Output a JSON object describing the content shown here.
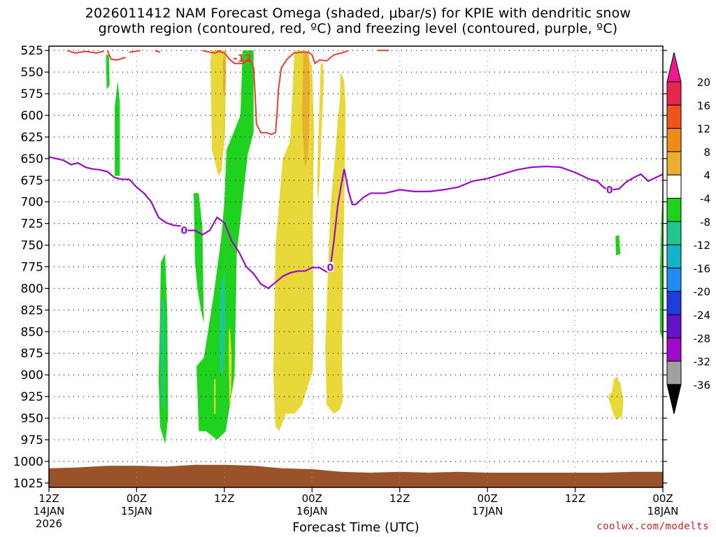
{
  "chart_data": {
    "type": "heatmap",
    "title_lines": [
      "2026011412 NAM Forecast Omega (shaded, μbar/s) for KPIE with dendritic snow",
      "growth region (contoured, red, ºC) and freezing level (contoured, purple, ºC)"
    ],
    "xlabel": "Forecast Time (UTC)",
    "credit": "coolwx.com/modelts",
    "x_range_hours": [
      0,
      84
    ],
    "x_ticks": [
      {
        "h": 0,
        "label": "12Z",
        "sub": "14JAN",
        "sub2": "2026"
      },
      {
        "h": 12,
        "label": "00Z",
        "sub": "15JAN",
        "sub2": ""
      },
      {
        "h": 24,
        "label": "12Z",
        "sub": "",
        "sub2": ""
      },
      {
        "h": 36,
        "label": "00Z",
        "sub": "16JAN",
        "sub2": ""
      },
      {
        "h": 48,
        "label": "12Z",
        "sub": "",
        "sub2": ""
      },
      {
        "h": 60,
        "label": "00Z",
        "sub": "17JAN",
        "sub2": ""
      },
      {
        "h": 72,
        "label": "12Z",
        "sub": "",
        "sub2": ""
      },
      {
        "h": 84,
        "label": "00Z",
        "sub": "18JAN",
        "sub2": ""
      }
    ],
    "y_ticks": [
      525,
      550,
      575,
      600,
      625,
      650,
      675,
      700,
      725,
      750,
      775,
      800,
      825,
      850,
      875,
      900,
      925,
      950,
      975,
      1000,
      1025
    ],
    "y_range_hpa": [
      520,
      1030
    ],
    "colorbar": {
      "labels": [
        "20",
        "16",
        "12",
        "8",
        "4",
        "-4",
        "-8",
        "-12",
        "-16",
        "-20",
        "-24",
        "-28",
        "-32",
        "-36"
      ],
      "colors": [
        "#e8254e",
        "#f0541c",
        "#f08a1a",
        "#e8b02e",
        "#e8d83a",
        "#ffffff",
        "#1ed21e",
        "#1ec88c",
        "#14b4c8",
        "#1e8cf0",
        "#1e3cdc",
        "#6414c8",
        "#a00ac8",
        "#a0a0a0"
      ],
      "top_triangle": "#ee1a8c",
      "bottom_triangle": "#000000"
    },
    "omega_regions": [
      {
        "v": -8,
        "pts": [
          [
            7.8,
            530
          ],
          [
            8.2,
            530
          ],
          [
            8.3,
            565
          ],
          [
            7.9,
            570
          ]
        ]
      },
      {
        "v": -8,
        "pts": [
          [
            9.0,
            670
          ],
          [
            9.0,
            590
          ],
          [
            9.4,
            560
          ],
          [
            9.7,
            585
          ],
          [
            9.7,
            670
          ]
        ]
      },
      {
        "v": -8,
        "pts": [
          [
            15.0,
            905
          ],
          [
            15.2,
            830
          ],
          [
            15.3,
            770
          ],
          [
            15.9,
            760
          ],
          [
            16.2,
            830
          ],
          [
            16.3,
            950
          ],
          [
            15.9,
            980
          ],
          [
            15.2,
            960
          ]
        ]
      },
      {
        "v": -8,
        "pts": [
          [
            20.0,
            770
          ],
          [
            19.8,
            690
          ],
          [
            20.5,
            690
          ],
          [
            21.0,
            730
          ],
          [
            21.2,
            840
          ],
          [
            20.8,
            825
          ],
          [
            20.3,
            800
          ]
        ]
      },
      {
        "v": -8,
        "pts": [
          [
            20.5,
            965
          ],
          [
            20.2,
            890
          ],
          [
            21.2,
            880
          ],
          [
            22.5,
            810
          ],
          [
            23.6,
            740
          ],
          [
            24.0,
            700
          ],
          [
            24.3,
            640
          ],
          [
            26.2,
            600
          ],
          [
            26.5,
            525
          ],
          [
            28.0,
            525
          ],
          [
            28.0,
            620
          ],
          [
            27.2,
            645
          ],
          [
            25.7,
            760
          ],
          [
            25.4,
            900
          ],
          [
            24.2,
            965
          ],
          [
            23.0,
            975
          ],
          [
            21.5,
            965
          ]
        ]
      },
      {
        "v": -8,
        "pts": [
          [
            77.5,
            740
          ],
          [
            78.0,
            738
          ],
          [
            78.2,
            760
          ],
          [
            77.6,
            762
          ]
        ]
      },
      {
        "v": -8,
        "pts": [
          [
            84,
            685
          ],
          [
            83.8,
            720
          ],
          [
            83.6,
            780
          ],
          [
            83.6,
            850
          ],
          [
            84,
            860
          ]
        ]
      },
      {
        "v": -12,
        "pts": [
          [
            15.3,
            860
          ],
          [
            15.5,
            810
          ],
          [
            15.8,
            820
          ],
          [
            15.8,
            940
          ],
          [
            15.5,
            935
          ]
        ]
      },
      {
        "v": -12,
        "pts": [
          [
            23.3,
            860
          ],
          [
            23.4,
            800
          ],
          [
            24.0,
            780
          ],
          [
            24.2,
            840
          ],
          [
            23.8,
            900
          ],
          [
            23.4,
            895
          ]
        ]
      },
      {
        "v": 4,
        "pts": [
          [
            22.3,
            640
          ],
          [
            22.1,
            540
          ],
          [
            22.2,
            525
          ],
          [
            24.3,
            525
          ],
          [
            24.2,
            560
          ],
          [
            24.1,
            620
          ],
          [
            23.6,
            665
          ],
          [
            23.2,
            670
          ]
        ]
      },
      {
        "v": 4,
        "pts": [
          [
            24.6,
            880
          ],
          [
            24.6,
            850
          ],
          [
            24.8,
            845
          ],
          [
            25.0,
            880
          ],
          [
            24.9,
            935
          ],
          [
            24.7,
            935
          ]
        ]
      },
      {
        "v": 4,
        "pts": [
          [
            22.6,
            925
          ],
          [
            22.6,
            905
          ],
          [
            22.8,
            905
          ],
          [
            22.8,
            945
          ],
          [
            22.6,
            945
          ]
        ]
      },
      {
        "v": 4,
        "pts": [
          [
            31.0,
            960
          ],
          [
            30.7,
            900
          ],
          [
            31.0,
            750
          ],
          [
            32.0,
            650
          ],
          [
            33.0,
            630
          ],
          [
            33.5,
            540
          ],
          [
            33.6,
            525
          ],
          [
            35.3,
            525
          ],
          [
            36.0,
            545
          ],
          [
            36.3,
            620
          ],
          [
            36.2,
            650
          ],
          [
            36.1,
            730
          ],
          [
            36.2,
            860
          ],
          [
            36.1,
            895
          ],
          [
            35.0,
            925
          ],
          [
            34.6,
            935
          ],
          [
            33.6,
            945
          ],
          [
            32.4,
            945
          ],
          [
            31.5,
            965
          ]
        ]
      },
      {
        "v": 4,
        "pts": [
          [
            36.7,
            670
          ],
          [
            37.2,
            540
          ],
          [
            37.5,
            540
          ],
          [
            37.6,
            560
          ],
          [
            37.3,
            620
          ],
          [
            37.0,
            680
          ],
          [
            36.8,
            700
          ]
        ]
      },
      {
        "v": 4,
        "pts": [
          [
            38.0,
            935
          ],
          [
            37.8,
            870
          ],
          [
            38.0,
            820
          ],
          [
            38.5,
            710
          ],
          [
            39.2,
            640
          ],
          [
            39.8,
            580
          ],
          [
            39.9,
            550
          ],
          [
            40.4,
            560
          ],
          [
            40.6,
            590
          ],
          [
            40.4,
            710
          ],
          [
            40.2,
            780
          ],
          [
            40.1,
            880
          ],
          [
            40.2,
            930
          ],
          [
            39.8,
            940
          ],
          [
            39.0,
            945
          ]
        ]
      },
      {
        "v": 4,
        "pts": [
          [
            76.5,
            925
          ],
          [
            77.0,
            920
          ],
          [
            77.3,
            905
          ],
          [
            77.7,
            902
          ],
          [
            78.2,
            910
          ],
          [
            78.6,
            930
          ],
          [
            78.4,
            948
          ],
          [
            77.6,
            952
          ],
          [
            77.2,
            945
          ]
        ]
      },
      {
        "v": 8,
        "pts": [
          [
            23.8,
            540
          ],
          [
            23.9,
            530
          ],
          [
            24.2,
            535
          ],
          [
            24.2,
            560
          ],
          [
            24.0,
            580
          ],
          [
            23.8,
            570
          ]
        ]
      },
      {
        "v": 8,
        "pts": [
          [
            35.0,
            660
          ],
          [
            34.6,
            600
          ],
          [
            34.8,
            530
          ],
          [
            35.5,
            525
          ],
          [
            35.7,
            560
          ],
          [
            35.6,
            620
          ],
          [
            35.4,
            650
          ]
        ]
      }
    ],
    "dgz_contour_label": "-12",
    "dgz_contours": [
      [
        [
          2.5,
          525
        ],
        [
          3.6,
          528
        ],
        [
          5.0,
          526
        ],
        [
          6.5,
          528
        ],
        [
          7.5,
          526
        ]
      ],
      [
        [
          8.0,
          525
        ],
        [
          8.5,
          535
        ],
        [
          9.3,
          536
        ],
        [
          10.5,
          533
        ]
      ],
      [
        [
          11.0,
          527
        ],
        [
          12.5,
          525
        ]
      ],
      [
        [
          23.0,
          525
        ],
        [
          24.0,
          528
        ],
        [
          24.8,
          536
        ],
        [
          25.4,
          540
        ],
        [
          26.6,
          540
        ],
        [
          27.4,
          535
        ],
        [
          28.0,
          545
        ],
        [
          28.2,
          575
        ],
        [
          28.4,
          610
        ],
        [
          29.0,
          620
        ],
        [
          29.8,
          620
        ],
        [
          30.4,
          622
        ],
        [
          31.0,
          620
        ],
        [
          31.2,
          600
        ],
        [
          31.4,
          570
        ],
        [
          31.8,
          545
        ],
        [
          32.6,
          535
        ],
        [
          33.5,
          528
        ],
        [
          34.5,
          527
        ],
        [
          35.5,
          527
        ],
        [
          36.0,
          530
        ],
        [
          36.4,
          540
        ],
        [
          37.0,
          536
        ],
        [
          38.0,
          537
        ],
        [
          39.0,
          530
        ],
        [
          40.0,
          528
        ],
        [
          41.0,
          525
        ]
      ],
      [
        [
          45.0,
          525
        ],
        [
          46.5,
          525
        ]
      ],
      [
        [
          14.5,
          525
        ],
        [
          15.2,
          527
        ]
      ],
      [
        [
          21.0,
          525
        ],
        [
          22.0,
          527
        ],
        [
          22.8,
          528
        ],
        [
          23.4,
          525
        ]
      ]
    ],
    "freezing_label": "0",
    "freezing_level": [
      [
        0,
        648
      ],
      [
        2,
        652
      ],
      [
        3,
        657
      ],
      [
        4,
        655
      ],
      [
        5,
        660
      ],
      [
        6,
        662
      ],
      [
        7,
        663
      ],
      [
        8,
        665
      ],
      [
        9,
        672
      ],
      [
        10,
        674
      ],
      [
        11,
        674
      ],
      [
        12,
        683
      ],
      [
        13,
        690
      ],
      [
        14,
        700
      ],
      [
        15,
        718
      ],
      [
        16,
        724
      ],
      [
        17,
        727
      ],
      [
        18,
        728
      ],
      [
        19,
        733
      ],
      [
        20,
        733
      ],
      [
        21,
        738
      ],
      [
        22,
        733
      ],
      [
        23,
        718
      ],
      [
        24,
        724
      ],
      [
        25,
        745
      ],
      [
        26,
        758
      ],
      [
        27,
        775
      ],
      [
        28,
        783
      ],
      [
        29,
        795
      ],
      [
        30,
        800
      ],
      [
        31,
        793
      ],
      [
        32,
        786
      ],
      [
        33,
        782
      ],
      [
        34,
        780
      ],
      [
        35,
        780
      ],
      [
        36,
        776
      ],
      [
        37,
        776
      ],
      [
        38,
        781
      ],
      [
        38.5,
        776
      ],
      [
        39,
        745
      ],
      [
        39.5,
        705
      ],
      [
        40,
        680
      ],
      [
        40.4,
        662
      ],
      [
        41,
        688
      ],
      [
        41.5,
        703
      ],
      [
        42,
        703
      ],
      [
        43,
        695
      ],
      [
        44,
        690
      ],
      [
        46,
        690
      ],
      [
        48,
        686
      ],
      [
        50,
        688
      ],
      [
        52,
        688
      ],
      [
        54,
        686
      ],
      [
        56,
        683
      ],
      [
        58,
        676
      ],
      [
        60,
        673
      ],
      [
        62,
        668
      ],
      [
        64,
        663
      ],
      [
        66,
        660
      ],
      [
        68,
        659
      ],
      [
        70,
        660
      ],
      [
        72,
        666
      ],
      [
        74,
        674
      ],
      [
        75,
        676
      ],
      [
        76,
        684
      ],
      [
        77,
        686
      ],
      [
        78,
        685
      ],
      [
        79,
        677
      ],
      [
        80,
        672
      ],
      [
        81,
        668
      ],
      [
        82,
        676
      ],
      [
        83,
        672
      ],
      [
        84,
        668
      ]
    ],
    "ground_surface": [
      [
        0,
        1008
      ],
      [
        4,
        1007
      ],
      [
        8,
        1005
      ],
      [
        12,
        1005
      ],
      [
        16,
        1006
      ],
      [
        20,
        1004
      ],
      [
        24,
        1004
      ],
      [
        28,
        1005
      ],
      [
        32,
        1008
      ],
      [
        36,
        1009
      ],
      [
        40,
        1012
      ],
      [
        44,
        1013
      ],
      [
        48,
        1012
      ],
      [
        52,
        1013
      ],
      [
        56,
        1012
      ],
      [
        60,
        1013
      ],
      [
        64,
        1013
      ],
      [
        68,
        1013
      ],
      [
        72,
        1013
      ],
      [
        76,
        1013
      ],
      [
        80,
        1012
      ],
      [
        84,
        1012
      ]
    ]
  }
}
